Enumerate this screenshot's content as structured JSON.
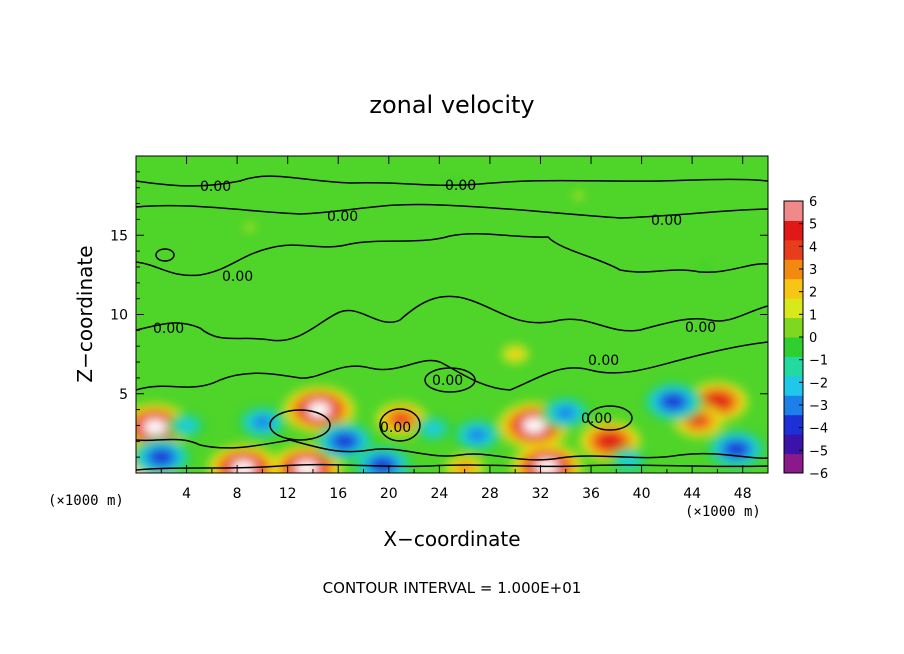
{
  "chart_data": {
    "type": "heatmap",
    "title": "zonal velocity",
    "xlabel": "X−coordinate",
    "ylabel": "Z−coordinate",
    "x_multiplier": "(×1000 m)",
    "x_multiplier_right": "(×1000 m)",
    "xlim": [
      0,
      50
    ],
    "ylim": [
      0,
      20
    ],
    "x_ticks": [
      4,
      8,
      12,
      16,
      20,
      24,
      28,
      32,
      36,
      40,
      44,
      48
    ],
    "y_ticks": [
      5,
      10,
      15
    ],
    "colorbar": {
      "min": -6,
      "max": 6,
      "ticks": [
        "6",
        "5",
        "4",
        "3",
        "2",
        "1",
        "0",
        "−1",
        "−2",
        "−3",
        "−4",
        "−5",
        "−6"
      ],
      "colors": [
        "#8a1a8a",
        "#3b13a8",
        "#1c30d6",
        "#1d7fe8",
        "#1fc7e8",
        "#22d9a0",
        "#2fcf2f",
        "#7ed81f",
        "#d9e81a",
        "#f6c516",
        "#f28a12",
        "#e83d1c",
        "#e01818",
        "#f08a8a"
      ]
    },
    "contour_labels": [
      "0.00",
      "0.00",
      "0.00",
      "0.00",
      "0.00",
      "0.00",
      "0.00",
      "0.00",
      "0.00",
      "0.00",
      "0.00"
    ],
    "footer": "CONTOUR INTERVAL = 1.000E+01",
    "anomalies": [
      {
        "x": 1.5,
        "z": 2.9,
        "v": 6
      },
      {
        "x": 14.5,
        "z": 4.0,
        "v": 6
      },
      {
        "x": 21.0,
        "z": 3.4,
        "v": 4
      },
      {
        "x": 31.5,
        "z": 3.0,
        "v": 6
      },
      {
        "x": 37.5,
        "z": 2.0,
        "v": 5
      },
      {
        "x": 46.0,
        "z": 4.5,
        "v": 5
      },
      {
        "x": 44.5,
        "z": 3.3,
        "v": 4
      },
      {
        "x": 0.5,
        "z": 0.2,
        "v": 6
      },
      {
        "x": 8.5,
        "z": 0.3,
        "v": 6
      },
      {
        "x": 13.5,
        "z": 0.3,
        "v": 6
      },
      {
        "x": 32.5,
        "z": 0.4,
        "v": 6
      },
      {
        "x": 26.0,
        "z": 0.3,
        "v": 3
      },
      {
        "x": 4.0,
        "z": 3.0,
        "v": -3
      },
      {
        "x": 10.0,
        "z": 3.2,
        "v": -4
      },
      {
        "x": 16.5,
        "z": 2.0,
        "v": -5
      },
      {
        "x": 23.5,
        "z": 2.8,
        "v": -3
      },
      {
        "x": 27.0,
        "z": 2.4,
        "v": -4
      },
      {
        "x": 34.0,
        "z": 3.8,
        "v": -4
      },
      {
        "x": 42.5,
        "z": 4.5,
        "v": -5
      },
      {
        "x": 47.5,
        "z": 1.5,
        "v": -5
      },
      {
        "x": 2.0,
        "z": 1.0,
        "v": -5
      },
      {
        "x": 19.5,
        "z": 0.5,
        "v": -5
      },
      {
        "x": 39.0,
        "z": 0.8,
        "v": -3
      },
      {
        "x": 9.0,
        "z": 15.5,
        "v": 1
      },
      {
        "x": 35.0,
        "z": 17.5,
        "v": 1
      },
      {
        "x": 30.0,
        "z": 7.5,
        "v": 2
      },
      {
        "x": 45.0,
        "z": 13.0,
        "v": -1
      },
      {
        "x": 25.0,
        "z": 18.3,
        "v": -1
      }
    ]
  }
}
